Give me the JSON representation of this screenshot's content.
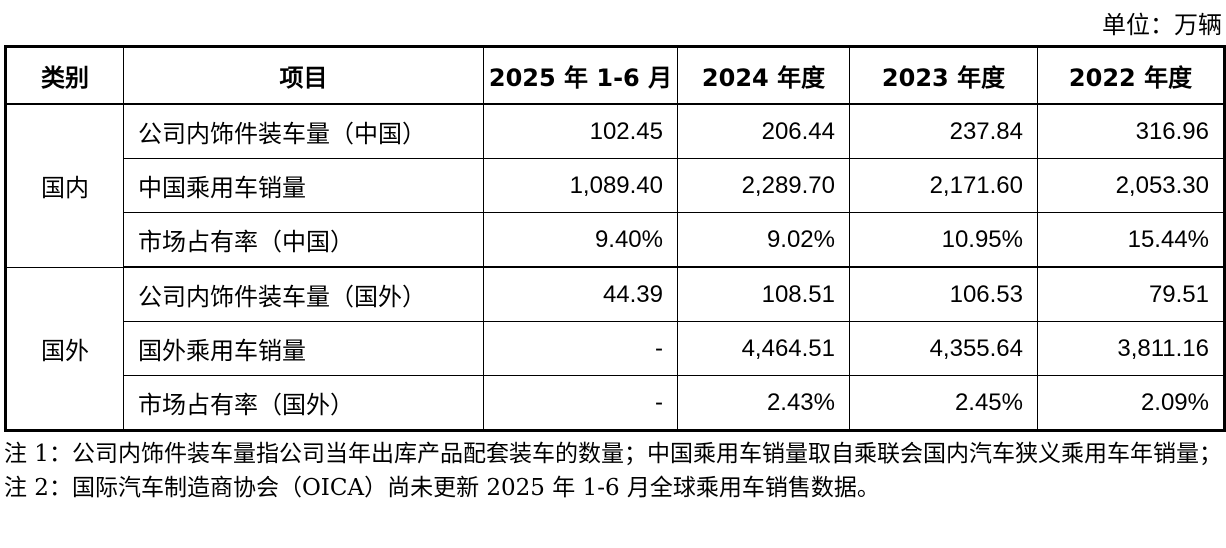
{
  "unit_label": "单位：万辆",
  "table": {
    "headers": [
      "类别",
      "项目",
      "2025 年 1-6 月",
      "2024 年度",
      "2023 年度",
      "2022 年度"
    ],
    "groups": [
      {
        "category": "国内",
        "rows": [
          {
            "item": "公司内饰件装车量（中国）",
            "values": [
              "102.45",
              "206.44",
              "237.84",
              "316.96"
            ]
          },
          {
            "item": "中国乘用车销量",
            "values": [
              "1,089.40",
              "2,289.70",
              "2,171.60",
              "2,053.30"
            ]
          },
          {
            "item": "市场占有率（中国）",
            "values": [
              "9.40%",
              "9.02%",
              "10.95%",
              "15.44%"
            ]
          }
        ]
      },
      {
        "category": "国外",
        "rows": [
          {
            "item": "公司内饰件装车量（国外）",
            "values": [
              "44.39",
              "108.51",
              "106.53",
              "79.51"
            ]
          },
          {
            "item": "国外乘用车销量",
            "values": [
              "-",
              "4,464.51",
              "4,355.64",
              "3,811.16"
            ]
          },
          {
            "item": "市场占有率（国外）",
            "values": [
              "-",
              "2.43%",
              "2.45%",
              "2.09%"
            ]
          }
        ]
      }
    ]
  },
  "notes": [
    "注 1：公司内饰件装车量指公司当年出库产品配套装车的数量；中国乘用车销量取自乘联会国内汽车狭义乘用车年销量；",
    "注 2：国际汽车制造商协会（OICA）尚未更新 2025 年 1-6 月全球乘用车销售数据。"
  ]
}
